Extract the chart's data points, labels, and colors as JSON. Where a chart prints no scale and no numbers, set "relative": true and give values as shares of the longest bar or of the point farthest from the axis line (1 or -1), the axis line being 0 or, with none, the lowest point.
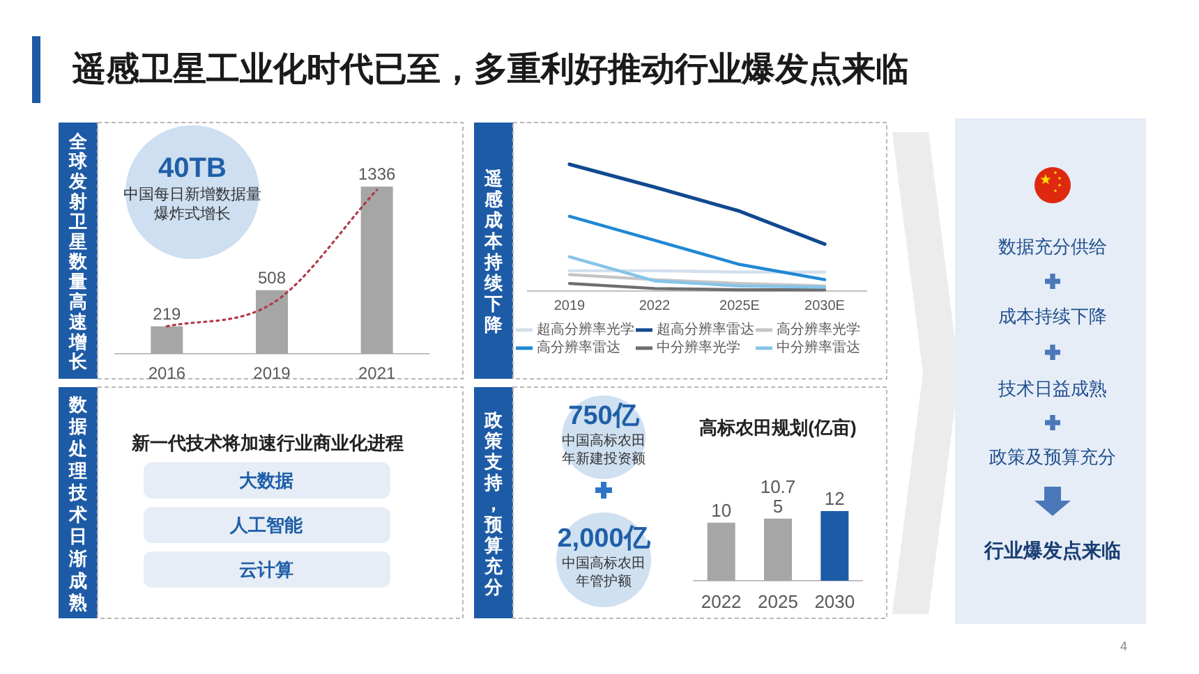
{
  "chart_data": [
    {
      "type": "other",
      "title": "遥感卫星工业化时代已至，多重利好推动行业爆发点来临",
      "annotations": [
        "4"
      ]
    },
    {
      "type": "bar",
      "title": "全球发射卫星数量高速增长",
      "categories": [
        "2016",
        "2019",
        "2021"
      ],
      "series": [
        {
          "type": "bar",
          "color": "#a6a6a6",
          "values": [
            219,
            508,
            1336
          ],
          "value_labels": [
            "219",
            "508",
            "1336"
          ]
        },
        {
          "type": "line",
          "color": "#b03a48",
          "line_style": "dotted",
          "values": [
            219,
            400,
            1310
          ]
        }
      ],
      "annotations": [
        "40TB",
        "中国每日新增数据量",
        "爆炸式增长"
      ]
    },
    {
      "type": "other",
      "title": "数据处理技术日渐成熟",
      "annotations": [
        "新一代技术将加速行业商业化进程",
        "大数据",
        "人工智能",
        "云计算"
      ]
    },
    {
      "type": "line",
      "title": "遥感成本持续下降",
      "relative": true,
      "categories": [
        "2019",
        "2022",
        "2025E",
        "2030E"
      ],
      "legend": "bottom",
      "series": [
        {
          "name": "超高分辨率光学",
          "color": "#d3dfec",
          "values": [
            0.16,
            0.16,
            0.15,
            0.15
          ]
        },
        {
          "name": "超高分辨率雷达",
          "color": "#10498f",
          "values": [
            1,
            0.82,
            0.63,
            0.37
          ]
        },
        {
          "name": "高分辨率光学",
          "color": "#c4c4c8",
          "values": [
            0.13,
            0.09,
            0.06,
            0.04
          ]
        },
        {
          "name": "高分辨率雷达",
          "color": "#2088d4",
          "values": [
            0.59,
            0.4,
            0.21,
            0.09
          ]
        },
        {
          "name": "中分辨率光学",
          "color": "#6e6e6e",
          "values": [
            0.06,
            0.02,
            0.01,
            0.01
          ]
        },
        {
          "name": "中分辨率雷达",
          "color": "#85c4ea",
          "values": [
            0.27,
            0.08,
            0.04,
            0.03
          ]
        }
      ]
    },
    {
      "type": "other",
      "title": "政策支持，预算充分",
      "annotations": [
        "750亿",
        "中国高标农田",
        "年新建投资额",
        "2,000亿",
        "中国高标农田",
        "年管护额"
      ]
    },
    {
      "type": "bar",
      "title": "高标农田规划(亿亩)",
      "categories": [
        "2022",
        "2025",
        "2030"
      ],
      "values": [
        10,
        10.7,
        12
      ],
      "colors": [
        "#a6a6a6",
        "#a6a6a6",
        "#1d5ba6"
      ],
      "data_labels": true,
      "annotations": [
        {
          "text": "5",
          "x": "2025",
          "y": 10.7
        }
      ]
    },
    {
      "type": "other",
      "annotations": [
        "数据充分供给",
        "成本持续下降",
        "技术日益成熟",
        "政策及预算充分",
        "行业爆发点来临"
      ]
    }
  ]
}
